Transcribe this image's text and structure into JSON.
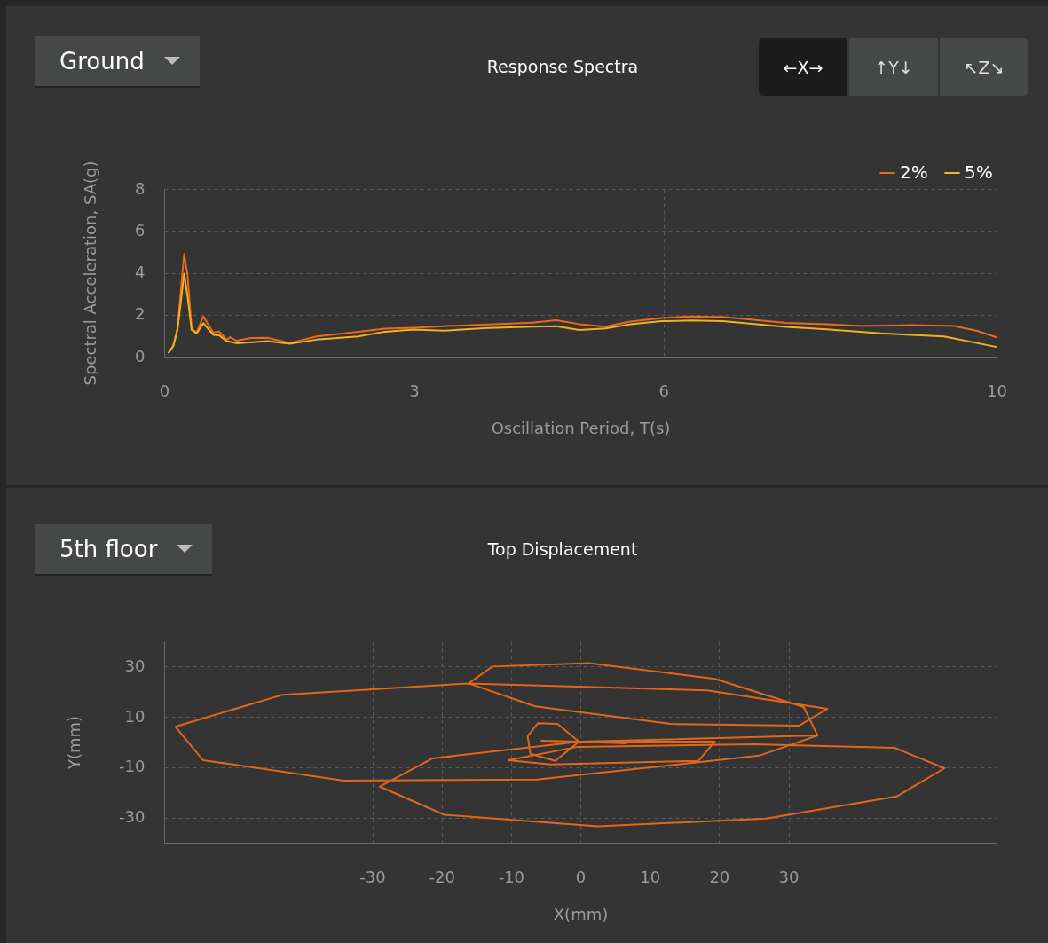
{
  "chart_data": [
    {
      "type": "line",
      "title": "Response Spectra",
      "xlabel": "Oscillation Period, T(s)",
      "ylabel": "Spectral Acceleration, SA(g)",
      "annotations": [
        "Ground",
        "←X→",
        "↑Y↓",
        "↖Z↘"
      ],
      "xlim": [
        0,
        10
      ],
      "xticks": [
        0,
        3,
        6,
        10
      ],
      "ylim": [
        0,
        8
      ],
      "yticks": [
        0,
        2,
        4,
        6,
        8
      ],
      "grid": true,
      "legend": "top right",
      "series": [
        {
          "name": "2%",
          "color": "#e8691c",
          "x": [
            0.05,
            0.11,
            0.16,
            0.24,
            0.28,
            0.33,
            0.39,
            0.47,
            0.59,
            0.66,
            0.75,
            0.79,
            0.87,
            1.05,
            1.24,
            1.51,
            1.83,
            2.33,
            2.65,
            3.0,
            3.36,
            3.89,
            4.42,
            4.71,
            4.99,
            5.3,
            5.6,
            5.98,
            6.33,
            6.71,
            7.47,
            7.96,
            8.38,
            8.99,
            9.49,
            9.76,
            10
          ],
          "values": [
            0.16,
            0.54,
            1.36,
            4.9,
            3.9,
            1.36,
            1.14,
            1.92,
            1.14,
            1.21,
            0.79,
            0.93,
            0.76,
            0.89,
            0.9,
            0.65,
            0.96,
            1.19,
            1.33,
            1.38,
            1.45,
            1.53,
            1.62,
            1.74,
            1.55,
            1.43,
            1.67,
            1.84,
            1.92,
            1.89,
            1.61,
            1.55,
            1.46,
            1.5,
            1.46,
            1.24,
            0.92
          ]
        },
        {
          "name": "5%",
          "color": "#f2b01e",
          "x": [
            0.05,
            0.11,
            0.16,
            0.24,
            0.28,
            0.33,
            0.39,
            0.47,
            0.59,
            0.66,
            0.75,
            0.87,
            1.05,
            1.24,
            1.51,
            1.83,
            2.33,
            2.65,
            3.0,
            3.36,
            3.89,
            4.42,
            4.71,
            4.99,
            5.3,
            5.6,
            5.98,
            6.33,
            6.71,
            7.47,
            7.96,
            8.61,
            9.37,
            10
          ],
          "values": [
            0.16,
            0.5,
            1.28,
            3.96,
            2.9,
            1.28,
            1.1,
            1.6,
            1.04,
            1.02,
            0.74,
            0.64,
            0.69,
            0.74,
            0.61,
            0.81,
            0.96,
            1.19,
            1.29,
            1.24,
            1.36,
            1.43,
            1.45,
            1.27,
            1.34,
            1.54,
            1.69,
            1.72,
            1.69,
            1.42,
            1.3,
            1.11,
            0.96,
            0.46
          ]
        }
      ]
    },
    {
      "type": "line",
      "title": "Top Displacement",
      "xlabel": "X(mm)",
      "ylabel": "Y(mm)",
      "annotations": [
        "5th floor"
      ],
      "xlim": [
        -60,
        60
      ],
      "xticks": [
        -30,
        -20,
        -10,
        0,
        10,
        20,
        30
      ],
      "ylim": [
        -40,
        40
      ],
      "yticks": [
        30,
        10,
        -10,
        -30
      ],
      "grid": true,
      "series": [
        {
          "color": "#e0661c",
          "x": [
            6.7,
            -5.6,
            -0.2,
            -3.3,
            -6.1,
            -7.6,
            -7.2,
            -3.6,
            -0.2,
            19.4,
            17.0,
            -4.3,
            -10.4,
            -0.4,
            25.1,
            45.3,
            52.5,
            45.6,
            26.8,
            2.5,
            -19.6,
            -28.9,
            -21.3,
            0,
            34.2,
            25.8,
            -6.3,
            -34.1,
            -54.4,
            -58.4,
            -42.9,
            -16.1,
            18.3,
            35.6,
            31.5,
            13.0,
            -6.5,
            -16.1,
            -12.7,
            1.2,
            19.4,
            32.2,
            34.2
          ],
          "values": [
            -0.5,
            0.5,
            0.2,
            7.2,
            7.5,
            2.3,
            -4.7,
            -7.5,
            0.2,
            0.2,
            -7.5,
            -8.9,
            -7.2,
            -1.9,
            -0.9,
            -2.3,
            -10.4,
            -21.6,
            -30.4,
            -33.5,
            -28.9,
            -17.7,
            -6.5,
            0.2,
            2.6,
            -5.4,
            -14.9,
            -15.3,
            -7.2,
            6.1,
            18.8,
            23.3,
            20.5,
            13.2,
            6.5,
            7.2,
            14.2,
            23.3,
            30.0,
            31.4,
            25.1,
            13.9,
            2.6
          ]
        }
      ]
    }
  ]
}
